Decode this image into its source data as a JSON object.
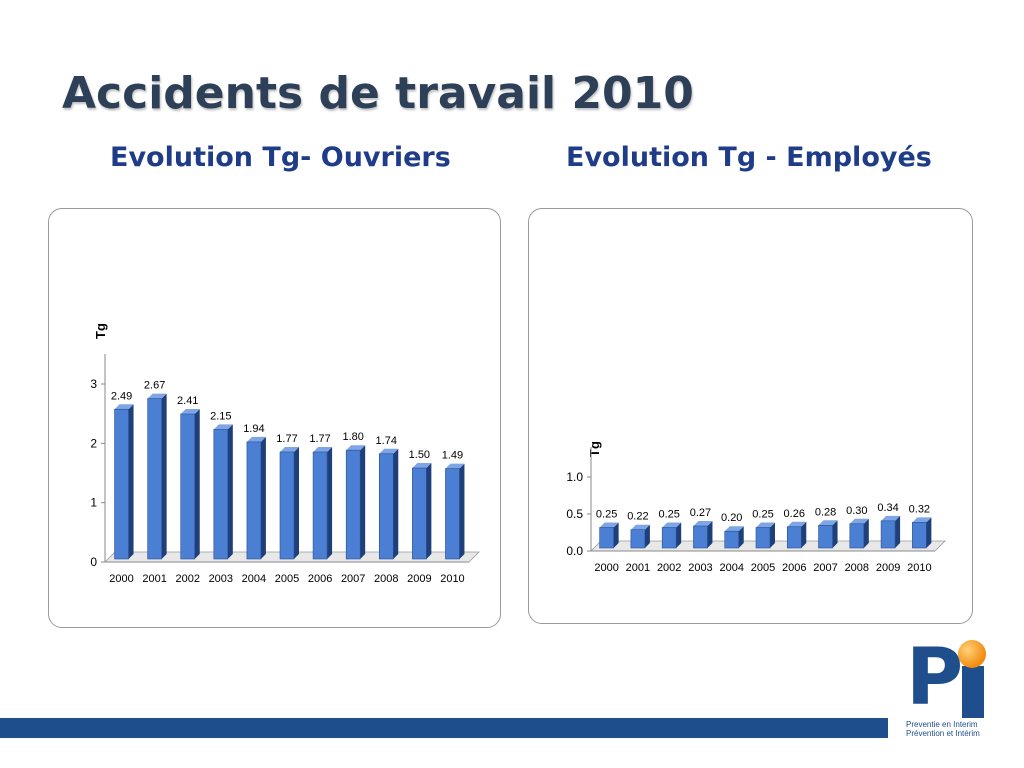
{
  "slide": {
    "title": "Accidents de travail 2010",
    "subtitle_left": "Evolution Tg- Ouvriers",
    "subtitle_right": "Evolution Tg - Employés"
  },
  "logo": {
    "letter_p": "P",
    "line1": "Preventie en Interim",
    "line2": "Prévention et Intérim"
  },
  "colors": {
    "title": "#2e4058",
    "subtitle": "#1f3c88",
    "bar_front": "#4a7fd4",
    "bar_side": "#1e3f78",
    "bar_top": "#7ea6e6",
    "footer": "#1f4e8c",
    "logo_dot": "#f28a0c"
  },
  "chart_data": [
    {
      "type": "bar",
      "title": "Evolution Tg- Ouvriers",
      "xlabel": "",
      "ylabel": "Tg",
      "categories": [
        "2000",
        "2001",
        "2002",
        "2003",
        "2004",
        "2005",
        "2006",
        "2007",
        "2008",
        "2009",
        "2010"
      ],
      "values": [
        2.49,
        2.67,
        2.41,
        2.15,
        1.94,
        1.77,
        1.77,
        1.8,
        1.74,
        1.5,
        1.49
      ],
      "labels": [
        "2.49",
        "2.67",
        "2.41",
        "2.15",
        "1.94",
        "1.77",
        "1.77",
        "1.80",
        "1.74",
        "1.50",
        "1.49"
      ],
      "ylim": [
        0,
        3
      ],
      "yticks": [
        "0",
        "1",
        "2",
        "3"
      ],
      "grid": false
    },
    {
      "type": "bar",
      "title": "Evolution Tg - Employés",
      "xlabel": "",
      "ylabel": "Tg",
      "categories": [
        "2000",
        "2001",
        "2002",
        "2003",
        "2004",
        "2005",
        "2006",
        "2007",
        "2008",
        "2009",
        "2010"
      ],
      "values": [
        0.25,
        0.22,
        0.25,
        0.27,
        0.2,
        0.25,
        0.26,
        0.28,
        0.3,
        0.34,
        0.32
      ],
      "labels": [
        "0.25",
        "0.22",
        "0.25",
        "0.27",
        "0.20",
        "0.25",
        "0.26",
        "0.28",
        "0.30",
        "0.34",
        "0.32"
      ],
      "ylim": [
        0,
        1
      ],
      "yticks": [
        "0.0",
        "0.5",
        "1.0"
      ],
      "grid": false
    }
  ]
}
